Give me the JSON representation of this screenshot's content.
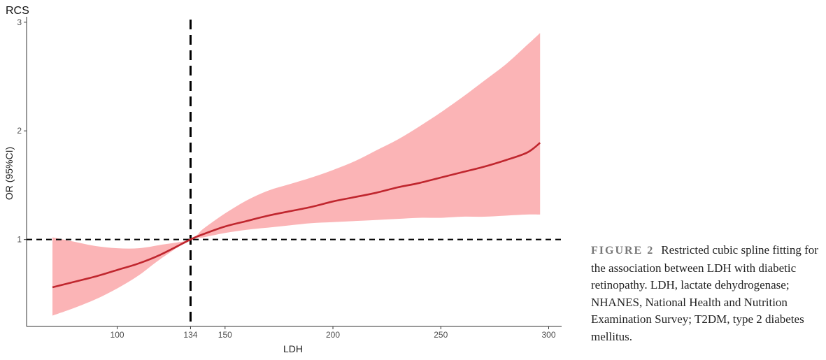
{
  "chart_data": {
    "type": "line",
    "title": "RCS",
    "xlabel": "LDH",
    "ylabel": "OR (95%CI)",
    "xlim": [
      58,
      306
    ],
    "ylim": [
      0.2,
      3.05
    ],
    "x_ticks": [
      100,
      134,
      150,
      200,
      250,
      300
    ],
    "y_ticks": [
      1,
      2,
      3
    ],
    "reference_lines": {
      "x": 134,
      "y": 1
    },
    "x": [
      70,
      80,
      90,
      100,
      110,
      120,
      134,
      140,
      150,
      160,
      170,
      180,
      190,
      200,
      210,
      220,
      230,
      240,
      250,
      260,
      270,
      280,
      290,
      296
    ],
    "series": [
      {
        "values": [
          0.56,
          0.61,
          0.66,
          0.72,
          0.78,
          0.86,
          1.0,
          1.05,
          1.12,
          1.17,
          1.22,
          1.26,
          1.3,
          1.35,
          1.39,
          1.43,
          1.48,
          1.52,
          1.57,
          1.62,
          1.67,
          1.73,
          1.8,
          1.89
        ],
        "lower": [
          0.3,
          0.37,
          0.45,
          0.55,
          0.67,
          0.82,
          1.0,
          1.02,
          1.06,
          1.09,
          1.11,
          1.13,
          1.15,
          1.16,
          1.17,
          1.18,
          1.19,
          1.2,
          1.2,
          1.21,
          1.21,
          1.22,
          1.23,
          1.23
        ],
        "upper": [
          1.02,
          0.98,
          0.94,
          0.92,
          0.92,
          0.95,
          1.0,
          1.1,
          1.24,
          1.36,
          1.45,
          1.51,
          1.57,
          1.64,
          1.72,
          1.82,
          1.92,
          2.04,
          2.17,
          2.31,
          2.46,
          2.61,
          2.79,
          2.9
        ]
      }
    ],
    "colors": {
      "line": "#c0262e",
      "band": "#fbb4b6",
      "reference": "#000000"
    }
  },
  "caption": {
    "label": "FIGURE 2",
    "text": "Restricted cubic spline fitting for the association between LDH with diabetic retinopathy. LDH, lactate dehydrogenase; NHANES, National Health and Nutrition Examination Survey; T2DM, type 2 diabetes mellitus."
  }
}
